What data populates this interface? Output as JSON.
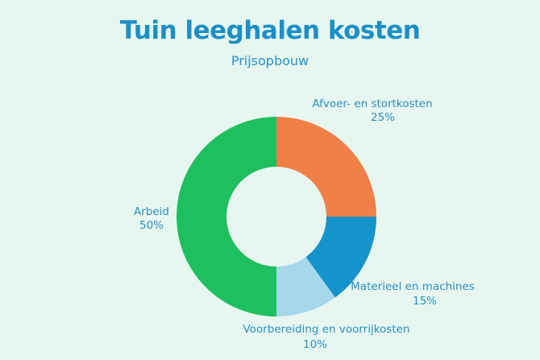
{
  "chart_data": {
    "type": "pie",
    "variant": "donut",
    "title": "Tuin leeghalen kosten",
    "subtitle": "Prijsopbouw",
    "slices": [
      {
        "label": "Afvoer- en stortkosten",
        "value": 25,
        "value_label": "25%",
        "color": "#f08048"
      },
      {
        "label": "Materieel en machines",
        "value": 15,
        "value_label": "15%",
        "color": "#1593cc"
      },
      {
        "label": "Voorbereiding en voorrijkosten",
        "value": 10,
        "value_label": "10%",
        "color": "#a7d7eb"
      },
      {
        "label": "Arbeid",
        "value": 50,
        "value_label": "50%",
        "color": "#1dbf5e"
      }
    ],
    "start": "top",
    "direction": "clockwise",
    "legend": "none"
  }
}
